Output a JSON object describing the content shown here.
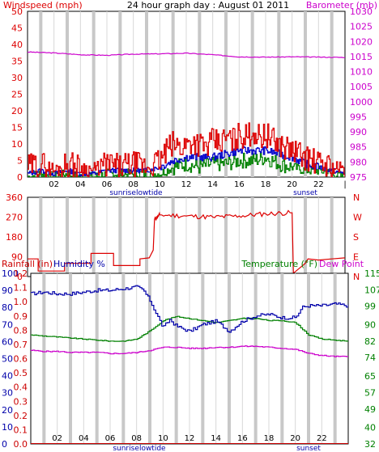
{
  "page": {
    "title": "24 hour graph day : August 01 2011"
  },
  "colors": {
    "wind": "#dd0000",
    "wind_avg": "#0000cc",
    "gust": "#008000",
    "barometer": "#cc00cc",
    "direction": "#dd0000",
    "humidity": "#0000aa",
    "temperature": "#008000",
    "dewpoint": "#cc00cc",
    "rain": "#cc0000",
    "axis_text": "#000000",
    "night_band": "#c8c8c8",
    "grid": "#d8d8d8"
  },
  "chart_data": [
    {
      "id": "wind-barometer",
      "type": "line",
      "title": "24 hour graph day : August 01 2011",
      "left_label": "Windspeed (mph)",
      "right_label": "Barometer (mb)",
      "x_ticks": [
        "02",
        "04",
        "06",
        "08",
        "10",
        "12",
        "14",
        "16",
        "18",
        "20",
        "22",
        "|"
      ],
      "annotations": [
        "sunrise",
        "lowtide",
        "sunset"
      ],
      "y_left": {
        "ticks": [
          0,
          5,
          10,
          15,
          20,
          25,
          30,
          35,
          40,
          45,
          50
        ],
        "range": [
          0,
          50
        ]
      },
      "y_right": {
        "ticks": [
          975,
          980,
          985,
          990,
          995,
          1000,
          1005,
          1010,
          1015,
          1020,
          1025,
          1030
        ],
        "range": [
          975,
          1030
        ]
      },
      "x_range_hours": [
        0,
        24
      ],
      "series": [
        {
          "name": "Windspeed",
          "axis": "left",
          "color": "#dd0000",
          "x": [
            0,
            1,
            2,
            3,
            4,
            5,
            6,
            7,
            8,
            9,
            10,
            10.5,
            11,
            11.5,
            12,
            12.5,
            13,
            13.5,
            14,
            14.5,
            15,
            15.5,
            16,
            16.5,
            17,
            17.5,
            18,
            18.5,
            19,
            19.5,
            20,
            20.5,
            21,
            21.5,
            22,
            22.5,
            23,
            24
          ],
          "y": [
            3,
            4,
            2,
            4,
            3,
            2,
            4,
            3,
            4,
            3,
            5,
            8,
            10,
            9,
            10,
            11,
            10,
            9,
            11,
            10,
            12,
            11,
            13,
            12,
            14,
            12,
            13,
            11,
            10,
            9,
            8,
            7,
            6,
            5,
            4,
            4,
            3,
            2
          ]
        },
        {
          "x": [
            0,
            1,
            2,
            3,
            4,
            5,
            6,
            7,
            8,
            9,
            10,
            11,
            12,
            13,
            14,
            15,
            16,
            17,
            18,
            19,
            20,
            21,
            22,
            23,
            24
          ],
          "y": [
            1,
            2,
            1,
            2,
            1,
            1,
            2,
            2,
            2,
            2,
            3,
            5,
            6,
            6,
            6,
            7,
            8,
            8,
            8,
            7,
            6,
            4,
            3,
            2,
            1
          ]
        },
        {
          "x": [
            0,
            1,
            2,
            3,
            4,
            5,
            6,
            7,
            8,
            9,
            10,
            11,
            12,
            13,
            14,
            15,
            16,
            17,
            18,
            19,
            20,
            21,
            22,
            23,
            24
          ],
          "y": [
            0,
            1,
            0,
            1,
            0,
            0,
            1,
            1,
            1,
            1,
            1,
            3,
            4,
            3,
            4,
            4,
            5,
            5,
            6,
            4,
            3,
            2,
            2,
            1,
            0
          ]
        },
        {
          "name": "Barometer",
          "axis": "right",
          "color": "#cc00cc",
          "x": [
            0,
            2,
            4,
            6,
            8,
            10,
            12,
            14,
            16,
            18,
            20,
            22,
            24
          ],
          "y": [
            1016.5,
            1016.2,
            1015.6,
            1015.4,
            1015.8,
            1015.9,
            1016.1,
            1015.6,
            1014.9,
            1014.8,
            1014.9,
            1014.8,
            1014.7
          ]
        }
      ]
    },
    {
      "id": "wind-direction",
      "type": "line",
      "y_left": {
        "ticks": [
          0,
          90,
          180,
          270,
          360
        ],
        "range": [
          0,
          360
        ]
      },
      "y_right_labels": [
        "N",
        "W",
        "S",
        "E",
        "N"
      ],
      "x_range_hours": [
        0,
        24
      ],
      "series": [
        {
          "name": "Wind direction",
          "color": "#dd0000",
          "x": [
            0,
            0.8,
            0.8,
            2.8,
            2.8,
            4.8,
            4.8,
            6.5,
            6.5,
            8.5,
            8.5,
            9.2,
            9.5,
            9.6,
            10,
            12,
            14,
            16,
            18,
            20,
            20.1,
            20.4,
            21,
            21.2,
            22,
            23,
            24
          ],
          "y": [
            80,
            80,
            25,
            25,
            60,
            60,
            105,
            105,
            50,
            50,
            80,
            85,
            120,
            260,
            280,
            275,
            270,
            275,
            285,
            290,
            15,
            30,
            60,
            80,
            75,
            80,
            85
          ]
        }
      ]
    },
    {
      "id": "rain-humidity-temp",
      "type": "line",
      "label_rain": "Rainfall (in)",
      "label_humidity": "Humidity %",
      "label_temp": "Temperature (°F)",
      "label_dew": "Dew Point",
      "x_ticks": [
        "02",
        "04",
        "06",
        "08",
        "10",
        "12",
        "14",
        "16",
        "18",
        "20",
        "22",
        "|"
      ],
      "annotations": [
        "sunrise",
        "lowtide",
        "sunset"
      ],
      "y_humidity": {
        "ticks": [
          0,
          10,
          20,
          30,
          40,
          50,
          60,
          70,
          80,
          90,
          100
        ],
        "range": [
          0,
          100
        ]
      },
      "y_rain": {
        "ticks": [
          0.0,
          0.1,
          0.2,
          0.3,
          0.4,
          0.5,
          0.6,
          0.7,
          0.8,
          0.9,
          1.0,
          1.1,
          1.2
        ],
        "range": [
          0,
          1.2
        ]
      },
      "y_temp": {
        "ticks": [
          32,
          40,
          49,
          57,
          65,
          74,
          82,
          90,
          99,
          107,
          115
        ],
        "range": [
          32,
          115
        ]
      },
      "x_range_hours": [
        0,
        24
      ],
      "series": [
        {
          "name": "Humidity",
          "axis": "humidity",
          "color": "#0000aa",
          "x": [
            0,
            1,
            2,
            3,
            4,
            5,
            6,
            7,
            8,
            8.5,
            9,
            9.5,
            10,
            10.5,
            11,
            12,
            13,
            14,
            15,
            16,
            17,
            18,
            19,
            20,
            20.5,
            21,
            22,
            23,
            24
          ],
          "y": [
            88,
            89,
            88,
            88,
            89,
            90,
            90,
            91,
            92,
            90,
            84,
            76,
            68,
            73,
            69,
            66,
            70,
            72,
            66,
            72,
            75,
            76,
            74,
            74,
            80,
            81,
            81,
            82,
            81
          ]
        },
        {
          "name": "Temperature",
          "axis": "temp",
          "color": "#008000",
          "x": [
            0,
            1,
            2,
            3,
            4,
            5,
            6,
            7,
            8,
            9,
            10,
            11,
            12,
            13,
            14,
            15,
            16,
            17,
            18,
            19,
            20,
            21,
            22,
            23,
            24
          ],
          "y": [
            85,
            84.5,
            84,
            83.5,
            83,
            82.5,
            82,
            82,
            83,
            87,
            92,
            94,
            93,
            92,
            91,
            92,
            93,
            93,
            92,
            92,
            91,
            85,
            83,
            82.5,
            82
          ]
        },
        {
          "name": "Dew Point",
          "axis": "temp",
          "color": "#cc00cc",
          "x": [
            0,
            1,
            2,
            3,
            4,
            5,
            6,
            7,
            8,
            9,
            10,
            11,
            12,
            13,
            14,
            15,
            16,
            17,
            18,
            19,
            20,
            21,
            22,
            23,
            24
          ],
          "y": [
            77.5,
            77,
            77,
            76.5,
            76.5,
            76.5,
            76,
            76,
            76.5,
            77.5,
            79,
            79,
            78.5,
            78.5,
            79,
            79,
            79.5,
            79.5,
            79,
            78.5,
            78,
            76,
            75,
            74.5,
            74.5
          ]
        },
        {
          "name": "Rainfall",
          "axis": "rain",
          "color": "#cc0000",
          "x": [
            0,
            24
          ],
          "y": [
            0,
            0
          ]
        }
      ]
    }
  ]
}
